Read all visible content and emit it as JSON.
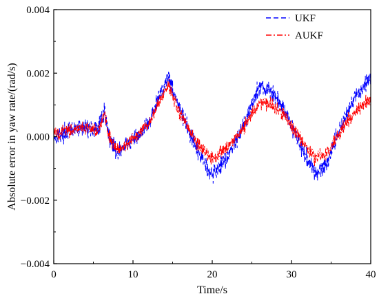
{
  "chart_data": {
    "type": "line",
    "xlabel": "Time/s",
    "ylabel": "Absolute error in yaw rate/(rad/s)",
    "xlim": [
      0,
      40
    ],
    "ylim": [
      -0.004,
      0.004
    ],
    "x_ticks": [
      0,
      10,
      20,
      30,
      40
    ],
    "y_ticks": [
      -0.004,
      -0.002,
      0.0,
      0.002,
      0.004
    ],
    "y_tick_labels": [
      "−0.004",
      "−0.002",
      "0.000",
      "0.002",
      "0.004"
    ],
    "x_tick_labels": [
      "0",
      "10",
      "20",
      "30",
      "40"
    ],
    "grid": false,
    "legend_position": "top-right",
    "series": [
      {
        "name": "UKF",
        "color": "#0000ff",
        "line_style": "dashed",
        "x": [
          0,
          2,
          4,
          5.5,
          6.4,
          7,
          8,
          10,
          12,
          13.5,
          14.5,
          16,
          18,
          20,
          22,
          24,
          26,
          27.5,
          29,
          31,
          33,
          34.5,
          36,
          38,
          40
        ],
        "y": [
          0.0,
          0.0002,
          0.0003,
          0.0002,
          0.0008,
          0.0,
          -0.0005,
          -0.0001,
          0.0004,
          0.0014,
          0.0019,
          0.0008,
          -0.0004,
          -0.0012,
          -0.0006,
          0.0004,
          0.0016,
          0.0014,
          0.0009,
          -0.0002,
          -0.0012,
          -0.0008,
          0.0002,
          0.0012,
          0.0019
        ],
        "noise_amplitude": 0.0004
      },
      {
        "name": "AUKF",
        "color": "#ff0000",
        "line_style": "dash-dot",
        "x": [
          0,
          2,
          4,
          5.5,
          6.4,
          7,
          8,
          10,
          12,
          13.5,
          14.5,
          16,
          18,
          20,
          22,
          24,
          26,
          27.5,
          29,
          31,
          33,
          34.5,
          36,
          38,
          40
        ],
        "y": [
          0.0001,
          0.0002,
          0.0003,
          0.0002,
          0.0007,
          0.0,
          -0.0004,
          -0.0001,
          0.0004,
          0.0012,
          0.0016,
          0.0007,
          -0.0002,
          -0.0007,
          -0.0003,
          0.0003,
          0.0011,
          0.001,
          0.0007,
          0.0,
          -0.0007,
          -0.0005,
          0.0001,
          0.0008,
          0.0012
        ],
        "noise_amplitude": 0.0003
      }
    ]
  }
}
